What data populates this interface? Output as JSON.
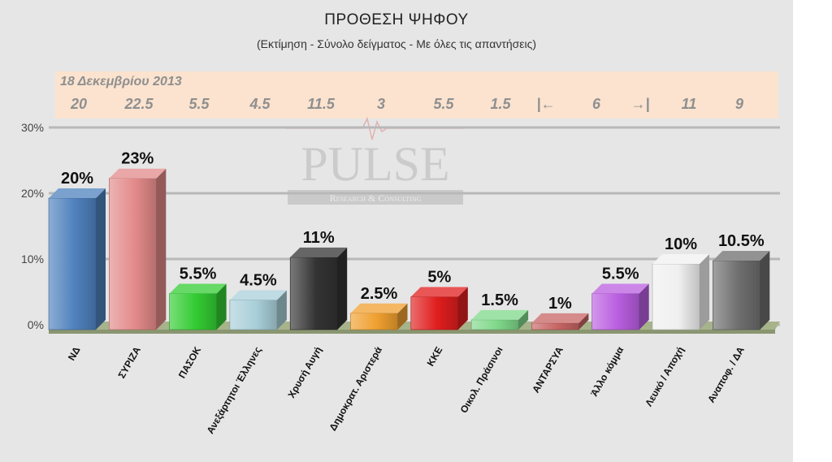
{
  "title": "ΠΡΟΘΕΣΗ ΨΗΦΟΥ",
  "subtitle": "(Εκτίμηση - Σύνολο δείγματος - Με όλες τις απαντήσεις)",
  "watermark": {
    "line1": "PULSE",
    "line2": "Research & Consulting"
  },
  "previous": {
    "date": "18 Δεκεμβρίου 2013",
    "values": [
      "20",
      "22.5",
      "5.5",
      "4.5",
      "11.5",
      "3",
      "5.5",
      "1.5",
      "|←",
      "6",
      "→|",
      "11",
      "9"
    ]
  },
  "colors": {
    "ND": "#4f81bd",
    "SYRIZA": "#e38a8a",
    "PASOK": "#33cc33",
    "ANEL": "#a9cfd9",
    "XA": "#333333",
    "DIMAR": "#f0a030",
    "KKE": "#e01e1e",
    "GREENS": "#7fd88a",
    "ANTARSYA": "#c86464",
    "OTHER": "#b95ee0",
    "BLANK": "#f0f0f0",
    "NA": "#6e6e6e"
  },
  "chart_data": {
    "type": "bar",
    "categories": [
      "ΝΔ",
      "ΣΥΡΙΖΑ",
      "ΠΑΣΟΚ",
      "Ανεξάρτητοι Έλληνες",
      "Χρυσή Αυγή",
      "Δημοκρατ. Αριστερά",
      "ΚΚΕ",
      "Οικολ. Πράσινοι",
      "ΑΝΤΑΡΣΥΑ",
      "Άλλο κόμμα",
      "Λευκό / Αποχή",
      "Αναποφ. / ΔΑ"
    ],
    "values": [
      20,
      23,
      5.5,
      4.5,
      11,
      2.5,
      5,
      1.5,
      1,
      5.5,
      10,
      10.5
    ],
    "data_labels": [
      "20%",
      "23%",
      "5.5%",
      "4.5%",
      "11%",
      "2.5%",
      "5%",
      "1.5%",
      "1%",
      "5.5%",
      "10%",
      "10.5%"
    ],
    "yticks": [
      "0%",
      "10%",
      "20%",
      "30%"
    ],
    "ylim": [
      0,
      30
    ],
    "grid": true
  }
}
